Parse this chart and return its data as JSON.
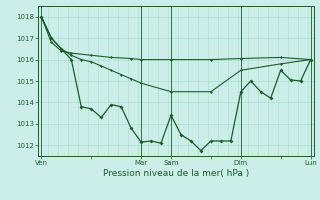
{
  "xlabel": "Pression niveau de la mer( hPa )",
  "bg_color": "#cceee8",
  "plot_bg_color": "#cceee8",
  "grid_color": "#aaddcc",
  "line_color": "#1a5c2a",
  "ylim": [
    1011.5,
    1018.5
  ],
  "yticks": [
    1012,
    1013,
    1014,
    1015,
    1016,
    1017,
    1018
  ],
  "xtick_labels": [
    "Ven",
    "",
    "Mar",
    "Sam",
    "",
    "Dim",
    "",
    "Lun"
  ],
  "xtick_positions": [
    0,
    5,
    10,
    13,
    17,
    20,
    24,
    27
  ],
  "vline_positions": [
    0,
    10,
    13,
    20,
    27
  ],
  "xlim": [
    -0.3,
    27.3
  ],
  "series1_x": [
    0,
    1,
    2,
    3,
    5,
    7,
    9,
    10,
    13,
    17,
    20,
    24,
    27
  ],
  "series1_y": [
    1018.0,
    1016.8,
    1016.4,
    1016.3,
    1016.2,
    1016.1,
    1016.05,
    1016.0,
    1016.0,
    1016.0,
    1016.05,
    1016.1,
    1016.0
  ],
  "series2_x": [
    0,
    1,
    2,
    3,
    4,
    5,
    6,
    7,
    8,
    9,
    10,
    13,
    17,
    20,
    24,
    27
  ],
  "series2_y": [
    1018.0,
    1017.0,
    1016.5,
    1016.2,
    1016.0,
    1015.9,
    1015.7,
    1015.5,
    1015.3,
    1015.1,
    1014.9,
    1014.5,
    1014.5,
    1015.5,
    1015.8,
    1016.0
  ],
  "series3_x": [
    0,
    1,
    2,
    3,
    4,
    5,
    6,
    7,
    8,
    9,
    10,
    11,
    12,
    13,
    14,
    15,
    16,
    17,
    18,
    19,
    20,
    21,
    22,
    23,
    24,
    25,
    26,
    27
  ],
  "series3_y": [
    1018.0,
    1017.0,
    1016.5,
    1016.0,
    1013.8,
    1013.7,
    1013.3,
    1013.9,
    1013.8,
    1012.8,
    1012.15,
    1012.2,
    1012.1,
    1013.4,
    1012.5,
    1012.2,
    1011.75,
    1012.2,
    1012.2,
    1012.2,
    1014.5,
    1015.0,
    1014.5,
    1014.2,
    1015.5,
    1015.05,
    1015.0,
    1016.0
  ]
}
